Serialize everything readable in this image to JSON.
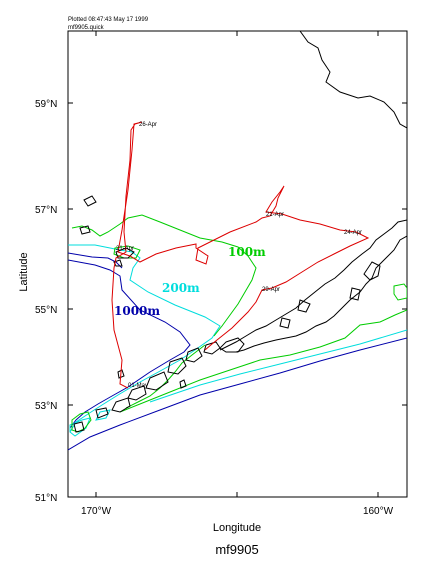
{
  "header": {
    "line1": "Plotted 08:47:43 May 17 1999",
    "line2": "mf9905.quick"
  },
  "title": "mf9905",
  "axes": {
    "xlabel": "Longitude",
    "ylabel": "Latitude",
    "x_ticks": [
      "170°W",
      "160°W"
    ],
    "y_ticks": [
      "59°N",
      "57°N",
      "55°N",
      "53°N",
      "51°N"
    ]
  },
  "contours": {
    "c100": {
      "label": "100m",
      "color": "#00cc00"
    },
    "c200": {
      "label": "200m",
      "color": "#00dddd"
    },
    "c1000": {
      "label": "1000m",
      "color": "#0000aa"
    }
  },
  "track": {
    "color": "#dd0000",
    "dates": [
      "26-Apr",
      "21-Apr",
      "24-Apr",
      "29-Apr",
      "01-May"
    ]
  },
  "colors": {
    "land": "#000000",
    "frame": "#000000"
  }
}
